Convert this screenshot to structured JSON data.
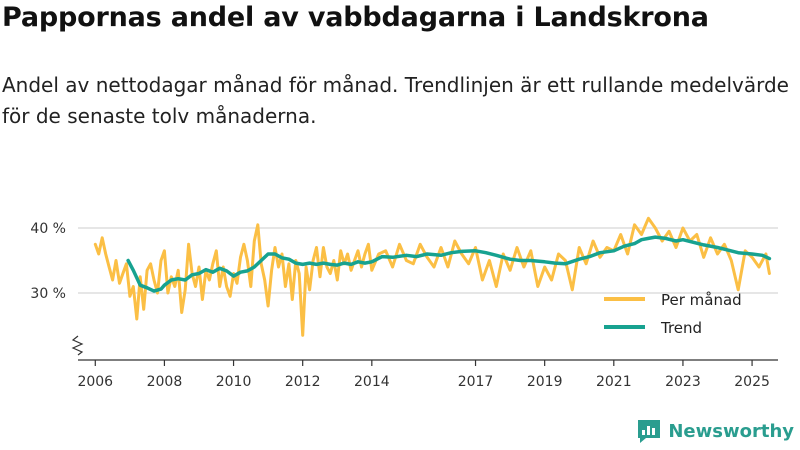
{
  "title": "Pappornas andel av vabbdagarna i Landskrona",
  "subtitle": "Andel av nettodagar månad för månad. Trendlinjen är ett rullande medelvärde för de senaste tolv månaderna.",
  "brand": {
    "name": "Newsworthy",
    "logo_icon": "newsworthy-logo-icon"
  },
  "colors": {
    "monthly": "#fbbf45",
    "trend": "#17a290",
    "grid": "#dddddd",
    "axis": "#333333"
  },
  "chart_data": {
    "type": "line",
    "ylim": [
      22,
      42
    ],
    "yticks": [
      30,
      40
    ],
    "ytick_labels": [
      "30 %",
      "40 %"
    ],
    "x_min": 2005.5,
    "x_max": 2025.75,
    "xticks": [
      2006,
      2008,
      2010,
      2012,
      2014,
      2017,
      2019,
      2021,
      2023,
      2025
    ],
    "xtick_labels": [
      "2006",
      "2008",
      "2010",
      "2012",
      "2014",
      "2017",
      "2019",
      "2021",
      "2023",
      "2025"
    ],
    "legend": {
      "position": "bottom-right"
    },
    "series": [
      {
        "name": "Per månad",
        "key": "monthly",
        "x": [
          2006.0,
          2006.1,
          2006.2,
          2006.3,
          2006.4,
          2006.5,
          2006.6,
          2006.7,
          2006.8,
          2006.9,
          2007.0,
          2007.1,
          2007.2,
          2007.3,
          2007.4,
          2007.5,
          2007.6,
          2007.7,
          2007.8,
          2007.9,
          2008.0,
          2008.1,
          2008.2,
          2008.3,
          2008.4,
          2008.5,
          2008.6,
          2008.7,
          2008.8,
          2008.9,
          2009.0,
          2009.1,
          2009.2,
          2009.3,
          2009.4,
          2009.5,
          2009.6,
          2009.7,
          2009.8,
          2009.9,
          2010.0,
          2010.1,
          2010.2,
          2010.3,
          2010.4,
          2010.5,
          2010.6,
          2010.7,
          2010.8,
          2010.9,
          2011.0,
          2011.1,
          2011.2,
          2011.3,
          2011.4,
          2011.5,
          2011.6,
          2011.7,
          2011.8,
          2011.9,
          2012.0,
          2012.1,
          2012.2,
          2012.3,
          2012.4,
          2012.5,
          2012.6,
          2012.7,
          2012.8,
          2012.9,
          2013.0,
          2013.1,
          2013.2,
          2013.3,
          2013.4,
          2013.5,
          2013.6,
          2013.7,
          2013.8,
          2013.9,
          2014.0,
          2014.2,
          2014.4,
          2014.6,
          2014.8,
          2015.0,
          2015.2,
          2015.4,
          2015.6,
          2015.8,
          2016.0,
          2016.2,
          2016.4,
          2016.6,
          2016.8,
          2017.0,
          2017.2,
          2017.4,
          2017.6,
          2017.8,
          2018.0,
          2018.2,
          2018.4,
          2018.6,
          2018.8,
          2019.0,
          2019.2,
          2019.4,
          2019.6,
          2019.8,
          2020.0,
          2020.2,
          2020.4,
          2020.6,
          2020.8,
          2021.0,
          2021.2,
          2021.4,
          2021.6,
          2021.8,
          2022.0,
          2022.2,
          2022.4,
          2022.6,
          2022.8,
          2023.0,
          2023.2,
          2023.4,
          2023.6,
          2023.8,
          2024.0,
          2024.2,
          2024.4,
          2024.6,
          2024.8,
          2025.0,
          2025.2,
          2025.4,
          2025.5
        ],
        "values": [
          37.5,
          36.0,
          38.5,
          36.0,
          34.0,
          32.0,
          35.0,
          31.5,
          33.0,
          34.5,
          29.5,
          31.0,
          26.0,
          32.5,
          27.5,
          33.5,
          34.5,
          32.0,
          30.0,
          35.0,
          36.5,
          30.0,
          32.5,
          31.0,
          33.5,
          27.0,
          30.5,
          37.5,
          33.0,
          31.0,
          34.0,
          29.0,
          33.5,
          32.0,
          34.5,
          36.5,
          31.0,
          34.0,
          31.0,
          29.5,
          33.0,
          31.5,
          35.5,
          37.5,
          35.0,
          31.0,
          38.0,
          40.5,
          34.5,
          32.0,
          28.0,
          33.5,
          37.0,
          34.0,
          36.0,
          31.0,
          34.5,
          29.0,
          35.0,
          33.0,
          23.5,
          34.0,
          30.5,
          35.0,
          37.0,
          32.5,
          37.0,
          34.0,
          33.0,
          35.0,
          32.0,
          36.5,
          34.5,
          36.0,
          33.5,
          35.0,
          36.5,
          34.0,
          36.0,
          37.5,
          33.5,
          36.0,
          36.5,
          34.0,
          37.5,
          35.0,
          34.5,
          37.5,
          35.5,
          34.0,
          37.0,
          34.0,
          38.0,
          36.0,
          34.5,
          37.0,
          32.0,
          35.0,
          31.0,
          36.0,
          33.5,
          37.0,
          34.0,
          36.5,
          31.0,
          34.0,
          32.0,
          36.0,
          35.0,
          30.5,
          37.0,
          34.5,
          38.0,
          35.5,
          37.0,
          36.5,
          39.0,
          36.0,
          40.5,
          39.0,
          41.5,
          40.0,
          38.0,
          39.5,
          37.0,
          40.0,
          38.0,
          39.0,
          35.5,
          38.5,
          36.0,
          37.5,
          35.0,
          30.5,
          36.5,
          35.5,
          34.0,
          36.0,
          33.0
        ]
      },
      {
        "name": "Trend",
        "key": "trend",
        "x": [
          2006.95,
          2007.1,
          2007.3,
          2007.5,
          2007.7,
          2007.9,
          2008.0,
          2008.2,
          2008.4,
          2008.6,
          2008.8,
          2009.0,
          2009.2,
          2009.4,
          2009.6,
          2009.8,
          2010.0,
          2010.2,
          2010.4,
          2010.6,
          2010.8,
          2011.0,
          2011.2,
          2011.4,
          2011.6,
          2011.8,
          2012.0,
          2012.2,
          2012.4,
          2012.6,
          2012.8,
          2013.0,
          2013.2,
          2013.4,
          2013.6,
          2013.8,
          2014.0,
          2014.3,
          2014.6,
          2015.0,
          2015.3,
          2015.6,
          2016.0,
          2016.3,
          2016.6,
          2017.0,
          2017.3,
          2017.6,
          2018.0,
          2018.3,
          2018.6,
          2019.0,
          2019.3,
          2019.6,
          2020.0,
          2020.3,
          2020.6,
          2021.0,
          2021.3,
          2021.6,
          2021.8,
          2022.0,
          2022.2,
          2022.5,
          2022.8,
          2023.0,
          2023.3,
          2023.6,
          2024.0,
          2024.3,
          2024.6,
          2025.0,
          2025.3,
          2025.5
        ],
        "values": [
          35.0,
          33.5,
          31.2,
          30.8,
          30.3,
          30.6,
          31.2,
          32.0,
          32.2,
          32.0,
          32.8,
          33.0,
          33.6,
          33.2,
          33.8,
          33.4,
          32.6,
          33.2,
          33.4,
          34.0,
          35.0,
          36.0,
          36.0,
          35.4,
          35.2,
          34.6,
          34.4,
          34.6,
          34.4,
          34.6,
          34.4,
          34.3,
          34.6,
          34.4,
          34.8,
          34.6,
          34.8,
          35.6,
          35.5,
          35.8,
          35.6,
          36.0,
          35.8,
          36.2,
          36.4,
          36.5,
          36.2,
          35.8,
          35.2,
          35.0,
          35.0,
          34.8,
          34.6,
          34.5,
          35.2,
          35.6,
          36.2,
          36.5,
          37.2,
          37.6,
          38.2,
          38.4,
          38.6,
          38.4,
          38.0,
          38.2,
          37.8,
          37.4,
          37.0,
          36.6,
          36.2,
          36.0,
          35.8,
          35.3
        ]
      }
    ]
  }
}
